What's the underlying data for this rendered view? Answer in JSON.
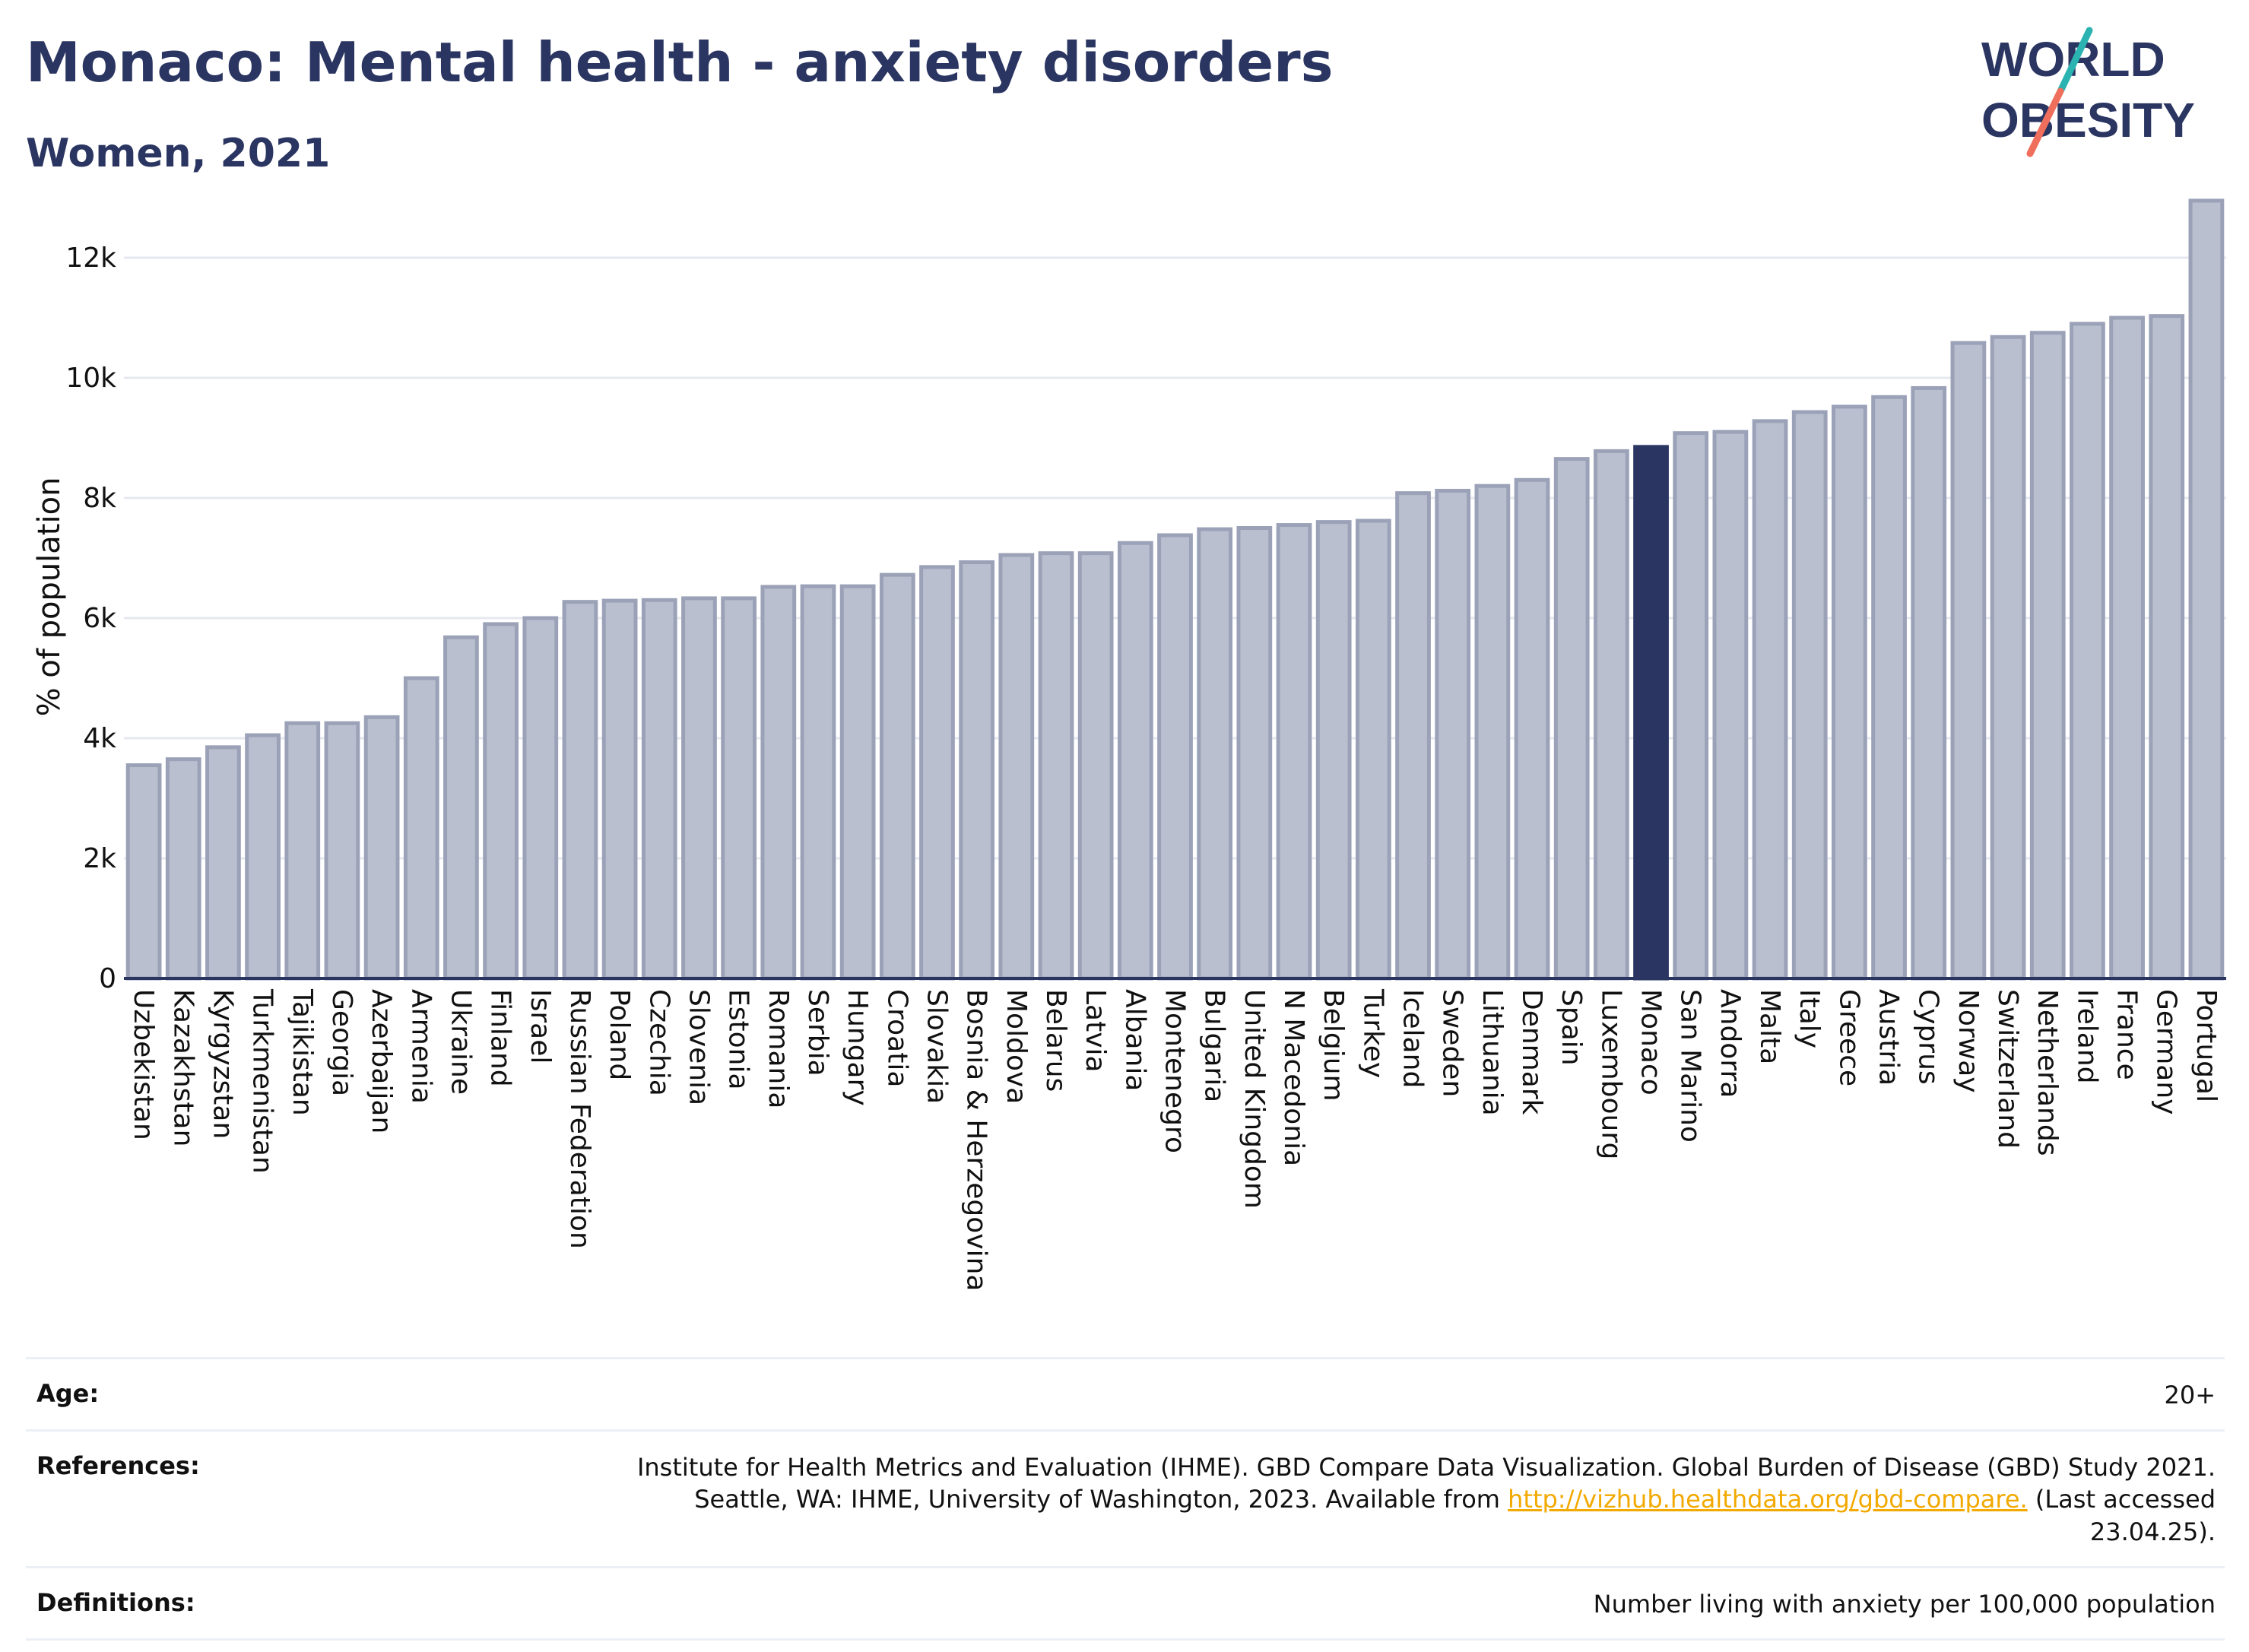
{
  "header": {
    "title": "Monaco: Mental health - anxiety disorders",
    "subtitle": "Women, 2021",
    "logo_line1": "WORLD",
    "logo_line2": "OBESITY"
  },
  "colors": {
    "bar": "#b9bfcf",
    "bar_border": "#9ba2b8",
    "highlight": "#2a3561",
    "logo_teal": "#2ab3b0",
    "logo_coral": "#ef6f5c",
    "grid": "#e6e8ef"
  },
  "chart_data": {
    "type": "bar",
    "ylabel": "% of population",
    "ylim": [
      0,
      13000
    ],
    "yticks": [
      0,
      2000,
      4000,
      6000,
      8000,
      10000,
      12000
    ],
    "ytick_labels": [
      "0",
      "2k",
      "4k",
      "6k",
      "8k",
      "10k",
      "12k"
    ],
    "grid": true,
    "highlight": "Monaco",
    "categories": [
      "Uzbekistan",
      "Kazakhstan",
      "Kyrgyzstan",
      "Turkmenistan",
      "Tajikistan",
      "Georgia",
      "Azerbaijan",
      "Armenia",
      "Ukraine",
      "Finland",
      "Israel",
      "Russian Federation",
      "Poland",
      "Czechia",
      "Slovenia",
      "Estonia",
      "Romania",
      "Serbia",
      "Hungary",
      "Croatia",
      "Slovakia",
      "Bosnia & Herzegovina",
      "Moldova",
      "Belarus",
      "Latvia",
      "Albania",
      "Montenegro",
      "Bulgaria",
      "United Kingdom",
      "N Macedonia",
      "Belgium",
      "Turkey",
      "Iceland",
      "Sweden",
      "Lithuania",
      "Denmark",
      "Spain",
      "Luxembourg",
      "Monaco",
      "San Marino",
      "Andorra",
      "Malta",
      "Italy",
      "Greece",
      "Austria",
      "Cyprus",
      "Norway",
      "Switzerland",
      "Netherlands",
      "Ireland",
      "France",
      "Germany",
      "Portugal"
    ],
    "values": [
      3550,
      3650,
      3850,
      4050,
      4250,
      4250,
      4350,
      5000,
      5680,
      5900,
      6000,
      6270,
      6290,
      6300,
      6330,
      6330,
      6520,
      6530,
      6530,
      6720,
      6850,
      6930,
      7050,
      7080,
      7080,
      7250,
      7380,
      7480,
      7500,
      7550,
      7600,
      7620,
      8080,
      8120,
      8200,
      8300,
      8650,
      8780,
      8850,
      9080,
      9100,
      9280,
      9430,
      9520,
      9680,
      9830,
      10580,
      10680,
      10750,
      10900,
      11000,
      11030,
      12950
    ]
  },
  "meta": {
    "age_key": "Age:",
    "age_val": "20+",
    "ref_key": "References:",
    "ref_text1": "Institute for Health Metrics and Evaluation (IHME). GBD Compare Data Visualization. Global Burden of Disease (GBD) Study 2021. Seattle, WA: IHME, University of Washington, 2023. Available from ",
    "ref_link": "http://vizhub.healthdata.org/gbd-compare.",
    "ref_text2": " (Last accessed 23.04.25).",
    "def_key": "Definitions:",
    "def_val": "Number living with anxiety per 100,000 population"
  }
}
